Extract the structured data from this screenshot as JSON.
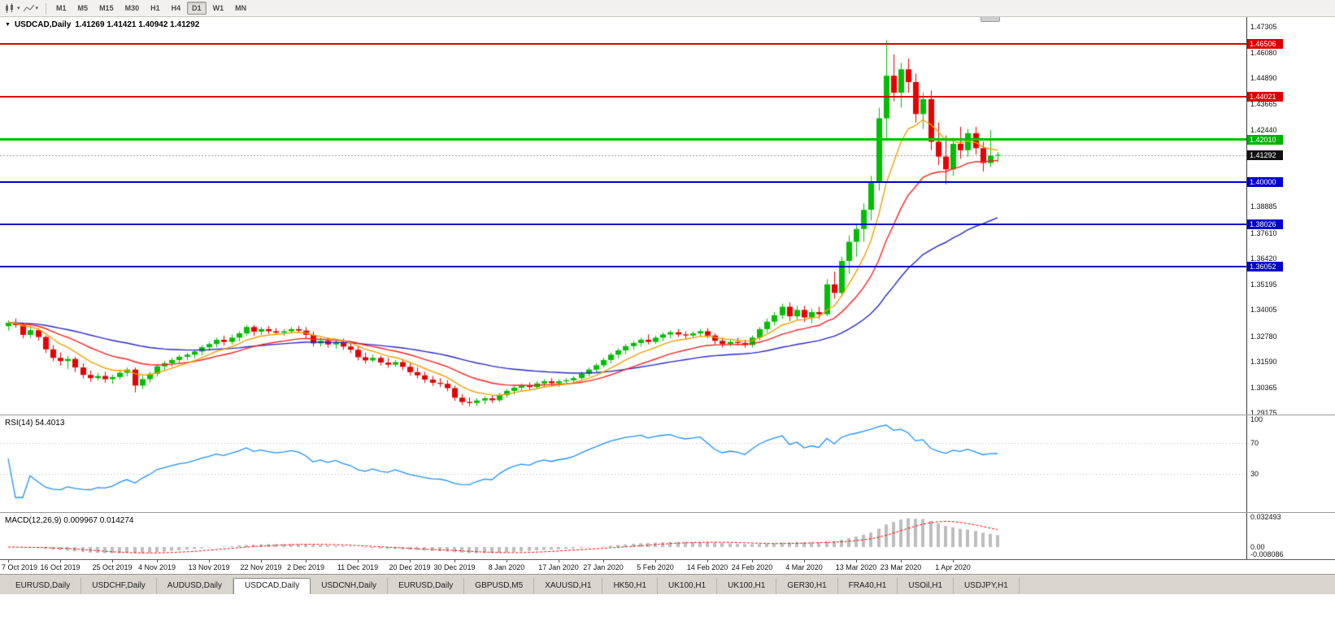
{
  "toolbar": {
    "timeframes": [
      "M1",
      "M5",
      "M15",
      "M30",
      "H1",
      "H4",
      "D1",
      "W1",
      "MN"
    ],
    "active_timeframe": "D1"
  },
  "chart": {
    "symbol_title": "USDCAD,Daily",
    "ohlc_text": "1.41269 1.41421 1.40942 1.41292",
    "open": "1.41269",
    "high": "1.41421",
    "low": "1.40942",
    "close": "1.41292",
    "current_price": "1.41292",
    "price_max": 1.47305,
    "price_min": 1.29175,
    "axis_labels": [
      "1.47305",
      "1.46080",
      "1.44890",
      "1.43665",
      "1.42440",
      "1.38885",
      "1.37610",
      "1.36420",
      "1.35195",
      "1.34005",
      "1.32780",
      "1.31590",
      "1.30365",
      "1.29175"
    ],
    "badges": [
      {
        "text": "1.46506",
        "color": "#DD0000"
      },
      {
        "text": "1.44021",
        "color": "#DD0000"
      },
      {
        "text": "1.42010",
        "color": "#00B300"
      },
      {
        "text": "1.41292",
        "color": "#111111"
      },
      {
        "text": "1.40000",
        "color": "#0000CC"
      },
      {
        "text": "1.38026",
        "color": "#0000CC"
      },
      {
        "text": "1.36052",
        "color": "#0000CC"
      }
    ],
    "hlines": [
      {
        "price": 1.46506,
        "color": "#DD0000",
        "thickness": 2
      },
      {
        "price": 1.44021,
        "color": "#DD0000",
        "thickness": 2
      },
      {
        "price": 1.4201,
        "color": "#00C400",
        "thickness": 3
      },
      {
        "price": 1.4,
        "color": "#0000CC",
        "thickness": 2
      },
      {
        "price": 1.38026,
        "color": "#0000CC",
        "thickness": 2
      },
      {
        "price": 1.36052,
        "color": "#0000CC",
        "thickness": 2
      }
    ],
    "colors": {
      "bull": "#00BE00",
      "bear": "#E80000",
      "current_price_line": "#999999",
      "background": "#FFFFFF"
    }
  },
  "chart_data": {
    "type": "candlestick",
    "title": "USDCAD Daily",
    "x_axis_dates": [
      {
        "i": 0,
        "label": "7 Oct 2019"
      },
      {
        "i": 7,
        "label": "16 Oct 2019"
      },
      {
        "i": 14,
        "label": "25 Oct 2019"
      },
      {
        "i": 20,
        "label": "4 Nov 2019"
      },
      {
        "i": 27,
        "label": "13 Nov 2019"
      },
      {
        "i": 34,
        "label": "22 Nov 2019"
      },
      {
        "i": 40,
        "label": "2 Dec 2019"
      },
      {
        "i": 47,
        "label": "11 Dec 2019"
      },
      {
        "i": 54,
        "label": "20 Dec 2019"
      },
      {
        "i": 60,
        "label": "30 Dec 2019"
      },
      {
        "i": 67,
        "label": "8 Jan 2020"
      },
      {
        "i": 74,
        "label": "17 Jan 2020"
      },
      {
        "i": 80,
        "label": "27 Jan 2020"
      },
      {
        "i": 87,
        "label": "5 Feb 2020"
      },
      {
        "i": 94,
        "label": "14 Feb 2020"
      },
      {
        "i": 100,
        "label": "24 Feb 2020"
      },
      {
        "i": 107,
        "label": "4 Mar 2020"
      },
      {
        "i": 114,
        "label": "13 Mar 2020"
      },
      {
        "i": 120,
        "label": "23 Mar 2020"
      },
      {
        "i": 127,
        "label": "1 Apr 2020"
      }
    ],
    "candles_ohlc": [
      [
        1.3325,
        1.3352,
        1.3304,
        1.3341
      ],
      [
        1.3341,
        1.3361,
        1.3318,
        1.333
      ],
      [
        1.333,
        1.3342,
        1.3268,
        1.3284
      ],
      [
        1.3284,
        1.3321,
        1.327,
        1.3306
      ],
      [
        1.3306,
        1.3316,
        1.3258,
        1.3274
      ],
      [
        1.3274,
        1.3281,
        1.3199,
        1.3216
      ],
      [
        1.3216,
        1.3236,
        1.3161,
        1.3176
      ],
      [
        1.3176,
        1.3201,
        1.3139,
        1.3161
      ],
      [
        1.3161,
        1.3186,
        1.3124,
        1.3171
      ],
      [
        1.3171,
        1.3181,
        1.3109,
        1.3131
      ],
      [
        1.3131,
        1.3151,
        1.3079,
        1.3096
      ],
      [
        1.3096,
        1.3116,
        1.3064,
        1.3081
      ],
      [
        1.3081,
        1.3106,
        1.3069,
        1.3091
      ],
      [
        1.3091,
        1.3111,
        1.3059,
        1.3076
      ],
      [
        1.3076,
        1.3096,
        1.3054,
        1.3086
      ],
      [
        1.3086,
        1.3121,
        1.3074,
        1.3106
      ],
      [
        1.3106,
        1.3131,
        1.3089,
        1.3121
      ],
      [
        1.3121,
        1.3131,
        1.3014,
        1.3046
      ],
      [
        1.3046,
        1.3091,
        1.3029,
        1.3076
      ],
      [
        1.3076,
        1.3111,
        1.3059,
        1.3101
      ],
      [
        1.3101,
        1.3146,
        1.3089,
        1.3136
      ],
      [
        1.3136,
        1.3161,
        1.3119,
        1.3151
      ],
      [
        1.3151,
        1.3176,
        1.3134,
        1.3166
      ],
      [
        1.3166,
        1.3191,
        1.3149,
        1.3181
      ],
      [
        1.3181,
        1.3201,
        1.3164,
        1.3191
      ],
      [
        1.3191,
        1.3216,
        1.3174,
        1.3206
      ],
      [
        1.3206,
        1.3236,
        1.3189,
        1.3226
      ],
      [
        1.3226,
        1.3251,
        1.3209,
        1.3241
      ],
      [
        1.3241,
        1.3271,
        1.3224,
        1.3261
      ],
      [
        1.3261,
        1.3281,
        1.3234,
        1.3251
      ],
      [
        1.3251,
        1.3286,
        1.3239,
        1.3271
      ],
      [
        1.3271,
        1.3301,
        1.3254,
        1.3291
      ],
      [
        1.3291,
        1.3331,
        1.3279,
        1.3321
      ],
      [
        1.3321,
        1.3331,
        1.3279,
        1.3299
      ],
      [
        1.3299,
        1.3321,
        1.3284,
        1.3311
      ],
      [
        1.3311,
        1.3326,
        1.3289,
        1.3301
      ],
      [
        1.3301,
        1.3316,
        1.3284,
        1.3294
      ],
      [
        1.3294,
        1.3311,
        1.3279,
        1.3301
      ],
      [
        1.3301,
        1.3321,
        1.3289,
        1.3311
      ],
      [
        1.3311,
        1.3326,
        1.3294,
        1.3304
      ],
      [
        1.3304,
        1.3321,
        1.3269,
        1.3284
      ],
      [
        1.3284,
        1.3301,
        1.3229,
        1.3244
      ],
      [
        1.3244,
        1.3271,
        1.3229,
        1.3256
      ],
      [
        1.3256,
        1.3271,
        1.3224,
        1.3239
      ],
      [
        1.3239,
        1.3261,
        1.3219,
        1.3251
      ],
      [
        1.3251,
        1.3266,
        1.3214,
        1.3229
      ],
      [
        1.3229,
        1.3246,
        1.3199,
        1.3214
      ],
      [
        1.3214,
        1.3231,
        1.3164,
        1.3179
      ],
      [
        1.3179,
        1.3201,
        1.3149,
        1.3164
      ],
      [
        1.3164,
        1.3191,
        1.3154,
        1.3176
      ],
      [
        1.3176,
        1.3186,
        1.3139,
        1.3154
      ],
      [
        1.3154,
        1.3176,
        1.3129,
        1.3144
      ],
      [
        1.3144,
        1.3166,
        1.3134,
        1.3156
      ],
      [
        1.3156,
        1.3171,
        1.3119,
        1.3134
      ],
      [
        1.3134,
        1.3151,
        1.3094,
        1.3109
      ],
      [
        1.3109,
        1.3131,
        1.3079,
        1.3094
      ],
      [
        1.3094,
        1.3111,
        1.3059,
        1.3074
      ],
      [
        1.3074,
        1.3091,
        1.3044,
        1.3059
      ],
      [
        1.3059,
        1.3081,
        1.3039,
        1.3054
      ],
      [
        1.3054,
        1.3071,
        1.3019,
        1.3034
      ],
      [
        1.3034,
        1.3046,
        1.2974,
        1.2989
      ],
      [
        1.2989,
        1.3006,
        1.2954,
        1.2969
      ],
      [
        1.2969,
        1.2991,
        1.2949,
        1.2964
      ],
      [
        1.2964,
        1.2986,
        1.2951,
        1.2976
      ],
      [
        1.2976,
        1.2996,
        1.2959,
        1.2986
      ],
      [
        1.2986,
        1.3001,
        1.2964,
        1.2977
      ],
      [
        1.2977,
        1.3011,
        1.2969,
        1.3001
      ],
      [
        1.3001,
        1.3031,
        1.2989,
        1.3021
      ],
      [
        1.3021,
        1.3046,
        1.3004,
        1.3036
      ],
      [
        1.3036,
        1.3056,
        1.3019,
        1.3046
      ],
      [
        1.3046,
        1.3061,
        1.3024,
        1.3039
      ],
      [
        1.3039,
        1.3066,
        1.3029,
        1.3056
      ],
      [
        1.3056,
        1.3076,
        1.3039,
        1.3066
      ],
      [
        1.3066,
        1.3081,
        1.3044,
        1.3057
      ],
      [
        1.3057,
        1.3076,
        1.3039,
        1.3066
      ],
      [
        1.3066,
        1.3081,
        1.3049,
        1.3071
      ],
      [
        1.3071,
        1.3091,
        1.3054,
        1.3081
      ],
      [
        1.3081,
        1.3111,
        1.3069,
        1.3101
      ],
      [
        1.3101,
        1.3131,
        1.3089,
        1.3121
      ],
      [
        1.3121,
        1.3151,
        1.3104,
        1.3141
      ],
      [
        1.3141,
        1.3176,
        1.3129,
        1.3166
      ],
      [
        1.3166,
        1.3201,
        1.3149,
        1.3191
      ],
      [
        1.3191,
        1.3221,
        1.3174,
        1.3211
      ],
      [
        1.3211,
        1.3241,
        1.3194,
        1.3231
      ],
      [
        1.3231,
        1.3256,
        1.3214,
        1.3246
      ],
      [
        1.3246,
        1.3271,
        1.3229,
        1.3261
      ],
      [
        1.3261,
        1.3286,
        1.3239,
        1.3251
      ],
      [
        1.3251,
        1.3281,
        1.3241,
        1.3271
      ],
      [
        1.3271,
        1.3296,
        1.3254,
        1.3286
      ],
      [
        1.3286,
        1.3306,
        1.3269,
        1.3296
      ],
      [
        1.3296,
        1.3311,
        1.3274,
        1.3286
      ],
      [
        1.3286,
        1.3301,
        1.3264,
        1.3281
      ],
      [
        1.3281,
        1.3301,
        1.3269,
        1.3291
      ],
      [
        1.3291,
        1.3311,
        1.3274,
        1.3301
      ],
      [
        1.3301,
        1.3316,
        1.3269,
        1.3281
      ],
      [
        1.3281,
        1.3291,
        1.3239,
        1.3256
      ],
      [
        1.3256,
        1.3271,
        1.3224,
        1.3241
      ],
      [
        1.3241,
        1.3266,
        1.3229,
        1.3251
      ],
      [
        1.3251,
        1.3271,
        1.3234,
        1.3246
      ],
      [
        1.3246,
        1.3261,
        1.3224,
        1.3236
      ],
      [
        1.3236,
        1.3281,
        1.3224,
        1.3271
      ],
      [
        1.3271,
        1.3321,
        1.3259,
        1.3311
      ],
      [
        1.3311,
        1.3361,
        1.3294,
        1.3346
      ],
      [
        1.3346,
        1.3391,
        1.3329,
        1.3376
      ],
      [
        1.3376,
        1.3431,
        1.3359,
        1.3416
      ],
      [
        1.3416,
        1.3436,
        1.3349,
        1.3371
      ],
      [
        1.3371,
        1.3421,
        1.3354,
        1.3401
      ],
      [
        1.3401,
        1.3421,
        1.3344,
        1.3366
      ],
      [
        1.3366,
        1.3406,
        1.3339,
        1.3391
      ],
      [
        1.3391,
        1.3416,
        1.3359,
        1.3381
      ],
      [
        1.3381,
        1.3546,
        1.3371,
        1.3521
      ],
      [
        1.3521,
        1.3581,
        1.3454,
        1.3481
      ],
      [
        1.3481,
        1.3651,
        1.3464,
        1.3631
      ],
      [
        1.3631,
        1.3751,
        1.3571,
        1.3721
      ],
      [
        1.3721,
        1.3801,
        1.3651,
        1.3781
      ],
      [
        1.3781,
        1.3901,
        1.3721,
        1.3871
      ],
      [
        1.3871,
        1.4031,
        1.3821,
        1.4001
      ],
      [
        1.4001,
        1.4351,
        1.3961,
        1.4301
      ],
      [
        1.4301,
        1.4668,
        1.4201,
        1.4501
      ],
      [
        1.4501,
        1.4601,
        1.4381,
        1.4421
      ],
      [
        1.4421,
        1.4561,
        1.4351,
        1.4531
      ],
      [
        1.4531,
        1.4581,
        1.4421,
        1.4471
      ],
      [
        1.4471,
        1.4511,
        1.4281,
        1.4321
      ],
      [
        1.4321,
        1.4421,
        1.4251,
        1.4391
      ],
      [
        1.4391,
        1.4431,
        1.4151,
        1.4191
      ],
      [
        1.4191,
        1.4281,
        1.4081,
        1.4121
      ],
      [
        1.4121,
        1.4221,
        1.3991,
        1.4061
      ],
      [
        1.4061,
        1.4211,
        1.4031,
        1.4181
      ],
      [
        1.4181,
        1.4261,
        1.4111,
        1.4151
      ],
      [
        1.4151,
        1.4251,
        1.4121,
        1.4231
      ],
      [
        1.4231,
        1.4261,
        1.4131,
        1.4161
      ],
      [
        1.4161,
        1.4191,
        1.4051,
        1.4091
      ],
      [
        1.4091,
        1.4245,
        1.4071,
        1.4125
      ],
      [
        1.41269,
        1.41421,
        1.40942,
        1.41292
      ]
    ],
    "overlays": [
      {
        "name": "ma-slow",
        "period": 45,
        "color": "#2828C8"
      },
      {
        "name": "ma-mid",
        "period": 18,
        "color": "#FF2020"
      },
      {
        "name": "ma-fast",
        "period": 8,
        "color": "#F0A000"
      }
    ]
  },
  "rsi": {
    "label": "RSI(14) 54.4013",
    "period": 14,
    "value": "54.4013",
    "axis_labels": [
      {
        "text": "100",
        "value": 100
      },
      {
        "text": "70",
        "value": 70
      },
      {
        "text": "30",
        "value": 30
      }
    ],
    "levels": [
      70,
      30
    ],
    "line_color": "#1E90FF"
  },
  "macd": {
    "label": "MACD(12,26,9) 0.009967 0.014274",
    "main_value": "0.009967",
    "signal_value": "0.014274",
    "fast": 12,
    "slow": 26,
    "signal_period": 9,
    "axis_labels": [
      {
        "text": "0.032493",
        "value": 0.032493
      },
      {
        "text": "0.00",
        "value": 0
      },
      {
        "text": "-0.008086",
        "value": -0.008086
      }
    ],
    "histogram_color": "#BDBDBD",
    "signal_color": "#FF0000"
  },
  "tabs": {
    "items": [
      "EURUSD,Daily",
      "USDCHF,Daily",
      "AUDUSD,Daily",
      "USDCAD,Daily",
      "USDCNH,Daily",
      "EURUSD,Daily",
      "GBPUSD,M5",
      "XAUUSD,H1",
      "HK50,H1",
      "UK100,H1",
      "UK100,H1",
      "GER30,H1",
      "FRA40,H1",
      "USOil,H1",
      "USDJPY,H1"
    ],
    "active_index": 3
  }
}
